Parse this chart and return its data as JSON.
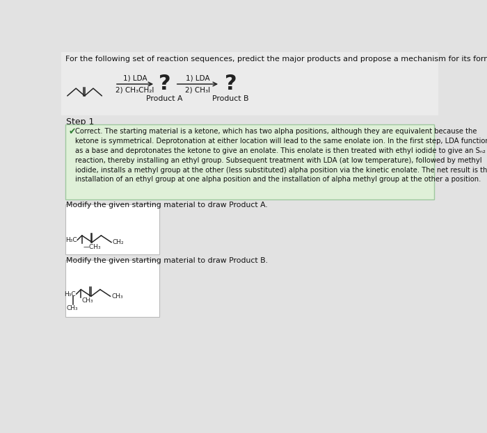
{
  "title_text": "For the following set of reaction sequences, predict the major products and propose a mechanism for its formation.",
  "bg_color": "#e2e2e2",
  "header_bg": "#ebebeb",
  "step1_label": "Step 1",
  "rxn1_line1": "1) LDA",
  "rxn1_line2": "2) CH₃CH₂I",
  "rxn2_line1": "1) LDA",
  "rxn2_line2": "2) CH₃I",
  "product_a_label": "Product A",
  "product_b_label": "Product B",
  "correct_box_bg": "#dff0d8",
  "correct_box_border": "#9ec89e",
  "correct_text_lines": [
    "Correct. The starting material is a ketone, which has two alpha positions, although they are equivalent because the",
    "ketone is symmetrical. Deprotonation at either location will lead to the same enolate ion. In the first step, LDA functions",
    "as a base and deprotonates the ketone to give an enolate. This enolate is then treated with ethyl iodide to give an Sₙ₂",
    "reaction, thereby installing an ethyl group. Subsequent treatment with LDA (at low temperature), followed by methyl",
    "iodide, installs a methyl group at the other (less substituted) alpha position via the kinetic enolate. The net result is the",
    "installation of an ethyl group at one alpha position and the installation of alpha methyl group at the other a position."
  ],
  "modify_a_text": "Modify the given starting material to draw Product A.",
  "modify_b_text": "Modify the given starting material to draw Product B.",
  "white_box_color": "#ffffff",
  "white_box_border": "#bbbbbb",
  "text_color": "#111111",
  "check_color": "#2e7d32",
  "question_color": "#222222",
  "arrow_color": "#222222",
  "line_color": "#222222",
  "title_fs": 8.0,
  "body_fs": 7.2,
  "label_fs": 7.8,
  "step_fs": 9.0,
  "qmark_fs": 22
}
